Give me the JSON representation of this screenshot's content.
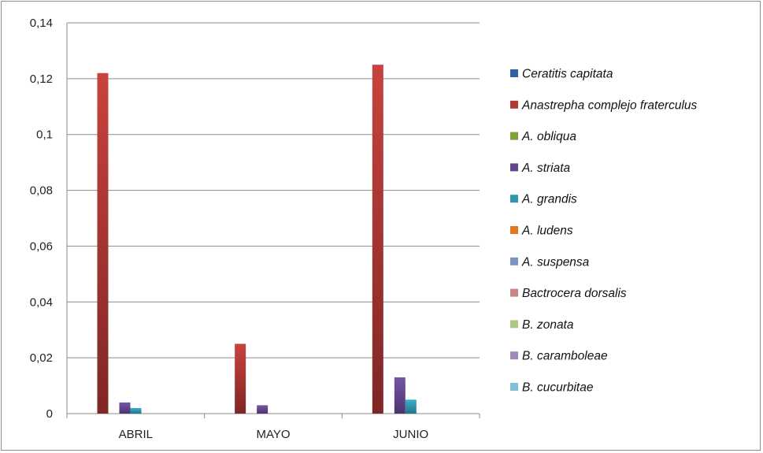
{
  "chart_data": {
    "type": "bar",
    "categories": [
      "ABRIL",
      "MAYO",
      "JUNIO"
    ],
    "ylim": [
      0,
      0.14
    ],
    "yticks": [
      0,
      0.02,
      0.04,
      0.06,
      0.08,
      0.1,
      0.12,
      0.14
    ],
    "ytick_labels": [
      "0",
      "0,02",
      "0,04",
      "0,06",
      "0,08",
      "0,1",
      "0,12",
      "0,14"
    ],
    "grid": true,
    "legend_position": "right",
    "series": [
      {
        "name": "Ceratitis capitata",
        "color": "#2f62a8",
        "values": [
          0,
          0,
          0
        ]
      },
      {
        "name": "Anastrepha complejo fraterculus",
        "color": "#b03a36",
        "values": [
          0.122,
          0.025,
          0.125
        ]
      },
      {
        "name": "A. obliqua",
        "color": "#7aa33a",
        "values": [
          0,
          0,
          0
        ]
      },
      {
        "name": "A. striata",
        "color": "#63478e",
        "values": [
          0.004,
          0.003,
          0.013
        ]
      },
      {
        "name": "A. grandis",
        "color": "#2f98b1",
        "values": [
          0.002,
          0,
          0.005
        ]
      },
      {
        "name": "A. ludens",
        "color": "#e0791e",
        "values": [
          0,
          0,
          0
        ]
      },
      {
        "name": "A. suspensa",
        "color": "#7b93c6",
        "values": [
          0,
          0,
          0
        ]
      },
      {
        "name": "Bactrocera dorsalis",
        "color": "#c98584",
        "values": [
          0,
          0,
          0
        ]
      },
      {
        "name": "B. zonata",
        "color": "#a9c984",
        "values": [
          0,
          0,
          0
        ]
      },
      {
        "name": "B. caramboleae",
        "color": "#9c8ab9",
        "values": [
          0,
          0,
          0
        ]
      },
      {
        "name": "B. cucurbitae",
        "color": "#7fc0d6",
        "values": [
          0,
          0,
          0
        ]
      }
    ]
  }
}
